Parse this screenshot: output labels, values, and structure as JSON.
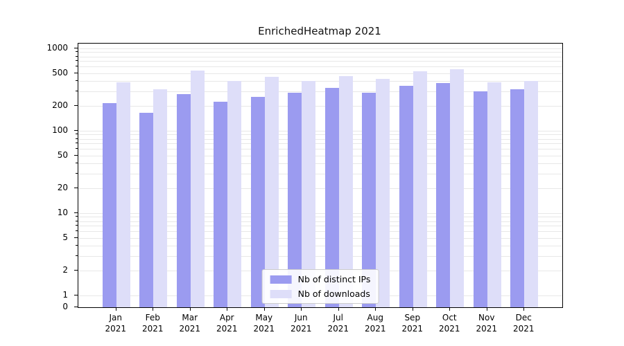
{
  "chart_data": {
    "type": "bar",
    "title": "EnrichedHeatmap 2021",
    "categories": [
      "Jan",
      "Feb",
      "Mar",
      "Apr",
      "May",
      "Jun",
      "Jul",
      "Aug",
      "Sep",
      "Oct",
      "Nov",
      "Dec"
    ],
    "category_year": "2021",
    "series": [
      {
        "name": "Nb of distinct IPs",
        "color": "#9b9bf0",
        "values": [
          215,
          165,
          280,
          225,
          260,
          290,
          330,
          290,
          350,
          380,
          300,
          320
        ]
      },
      {
        "name": "Nb of downloads",
        "color": "#dedef9",
        "values": [
          390,
          320,
          540,
          400,
          450,
          400,
          460,
          425,
          530,
          560,
          390,
          400
        ]
      }
    ],
    "yscale": "symlog",
    "ylim": [
      0,
      1000
    ],
    "yticks": [
      0,
      1,
      2,
      5,
      10,
      20,
      50,
      100,
      200,
      500,
      1000
    ],
    "grid": "horizontal",
    "legend_position": "bottom-center",
    "colors": {
      "background": "#ffffff",
      "axis": "#000000",
      "grid": "#e7e7e7",
      "text": "#000000"
    }
  }
}
